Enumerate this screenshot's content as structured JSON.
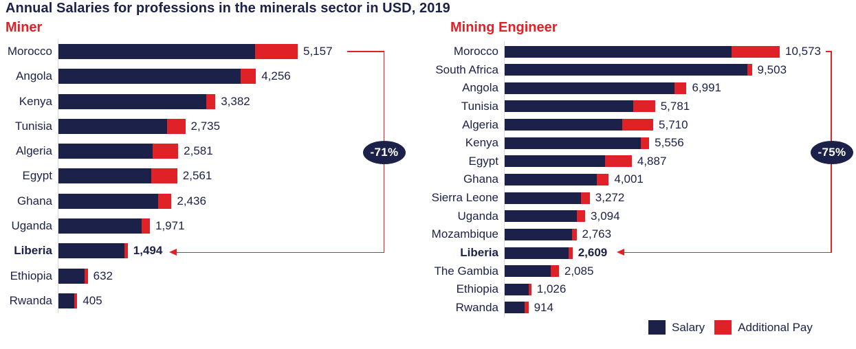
{
  "title": "Annual Salaries for professions in the minerals sector in USD, 2019",
  "colors": {
    "salary_navy": "#1b2148",
    "additional_pay_red": "#df2228",
    "heading_red": "#df2228",
    "text_navy": "#1b2148",
    "axis_gray": "#d9d9d9",
    "annotation_line_red": "#df2228",
    "annotation_bubble_navy": "#1b2148",
    "annotation_text_white": "#ffffff"
  },
  "chart_data": [
    {
      "type": "bar",
      "orientation": "horizontal",
      "stacked": true,
      "title": "Miner",
      "grid": false,
      "xlim": [
        0,
        5200
      ],
      "categories": [
        "Morocco",
        "Angola",
        "Kenya",
        "Tunisia",
        "Algeria",
        "Egypt",
        "Ghana",
        "Uganda",
        "Liberia",
        "Ethiopia",
        "Rwanda"
      ],
      "series": [
        {
          "name": "Salary",
          "color_key": "salary_navy",
          "values": [
            4235,
            3925,
            3180,
            2335,
            2036,
            2006,
            2156,
            1791,
            1429,
            562,
            345
          ]
        },
        {
          "name": "Additional Pay",
          "color_key": "additional_pay_red",
          "values": [
            922,
            331,
            202,
            400,
            545,
            555,
            280,
            180,
            65,
            70,
            60
          ]
        }
      ],
      "totals": [
        5157,
        4256,
        3382,
        2735,
        2581,
        2561,
        2436,
        1971,
        1494,
        632,
        405
      ],
      "total_labels": [
        "5,157",
        "4,256",
        "3,382",
        "2,735",
        "2,581",
        "2,561",
        "2,436",
        "1,971",
        "1,494",
        "632",
        "405"
      ],
      "highlight_category": "Liberia"
    },
    {
      "type": "bar",
      "orientation": "horizontal",
      "stacked": true,
      "title": "Mining Engineer",
      "grid": false,
      "xlim": [
        0,
        10600
      ],
      "categories": [
        "Morocco",
        "South Africa",
        "Angola",
        "Tunisia",
        "Algeria",
        "Kenya",
        "Egypt",
        "Ghana",
        "Sierra Leone",
        "Uganda",
        "Mozambique",
        "Liberia",
        "The Gambia",
        "Ethiopia",
        "Rwanda"
      ],
      "series": [
        {
          "name": "Salary",
          "color_key": "salary_navy",
          "values": [
            8712,
            9331,
            6529,
            4930,
            4527,
            5243,
            3868,
            3553,
            2922,
            2779,
            2578,
            2464,
            1776,
            917,
            774
          ]
        },
        {
          "name": "Additional Pay",
          "color_key": "additional_pay_red",
          "values": [
            1861,
            172,
            462,
            851,
            1183,
            313,
            1019,
            448,
            350,
            315,
            185,
            145,
            309,
            109,
            140
          ]
        }
      ],
      "totals": [
        10573,
        9503,
        6991,
        5781,
        5710,
        5556,
        4887,
        4001,
        3272,
        3094,
        2763,
        2609,
        2085,
        1026,
        914
      ],
      "total_labels": [
        "10,573",
        "9,503",
        "6,991",
        "5,781",
        "5,710",
        "5,556",
        "4,887",
        "4,001",
        "3,272",
        "3,094",
        "2,763",
        "2,609",
        "2,085",
        "1,026",
        "914"
      ],
      "highlight_category": "Liberia"
    }
  ],
  "annotations": [
    {
      "label": "-71%",
      "chart": "Miner",
      "from_category": "Morocco",
      "target_category": "Liberia"
    },
    {
      "label": "-75%",
      "chart": "Mining Engineer",
      "from_category": "Morocco",
      "target_category": "Liberia"
    }
  ],
  "legend": {
    "position": "bottom-right",
    "items": [
      {
        "label": "Salary",
        "color": "#1b2148"
      },
      {
        "label": "Additional Pay",
        "color": "#df2228"
      }
    ]
  }
}
